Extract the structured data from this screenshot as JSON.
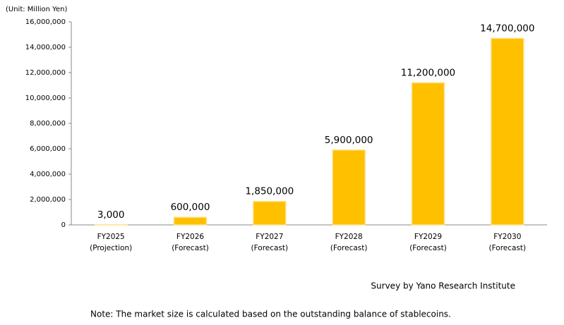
{
  "chart_data": {
    "type": "bar",
    "unit_label": "(Unit: Million Yen)",
    "categories": [
      [
        "FY2025",
        "(Projection)"
      ],
      [
        "FY2026",
        "(Forecast)"
      ],
      [
        "FY2027",
        "(Forecast)"
      ],
      [
        "FY2028",
        "(Forecast)"
      ],
      [
        "FY2029",
        "(Forecast)"
      ],
      [
        "FY2030",
        "(Forecast)"
      ]
    ],
    "values": [
      3000,
      600000,
      1850000,
      5900000,
      11200000,
      14700000
    ],
    "value_labels": [
      "3,000",
      "600,000",
      "1,850,000",
      "5,900,000",
      "11,200,000",
      "14,700,000"
    ],
    "color": "#ffc000",
    "ylim": [
      0,
      16000000
    ],
    "yticks": [
      0,
      {
        "value": 2000000,
        "label": "2,000,000"
      },
      {
        "value": 4000000,
        "label": "4,000,000"
      },
      {
        "value": 6000000,
        "label": "6,000,000"
      },
      {
        "value": 8000000,
        "label": "8,000,000"
      },
      {
        "value": 10000000,
        "label": "10,000,000"
      },
      {
        "value": 12000000,
        "label": "12,000,000"
      },
      {
        "value": 14000000,
        "label": "14,000,000"
      },
      {
        "value": 16000000,
        "label": "16,000,000"
      }
    ],
    "grid": false,
    "source": "Survey by Yano Research Institute",
    "note": "Note: The market size is calculated based on the outstanding balance of stablecoins."
  }
}
